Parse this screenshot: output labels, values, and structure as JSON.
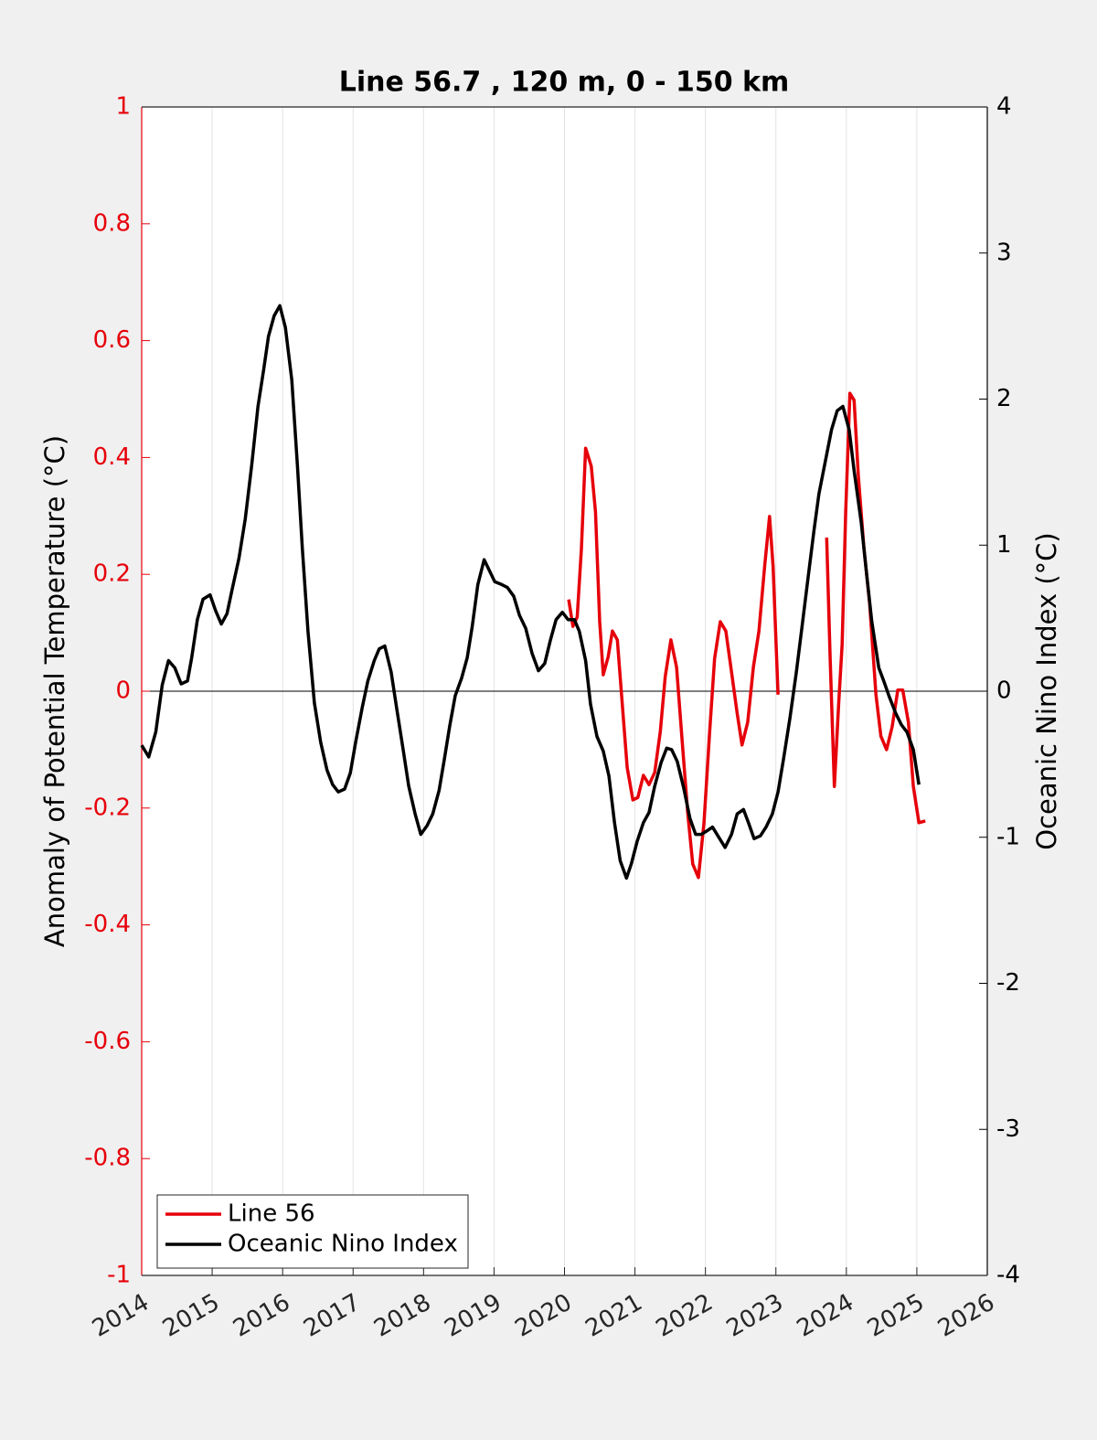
{
  "chart_data": {
    "type": "line",
    "title": "Line 56.7 , 120 m, 0 - 150 km",
    "y_label": "Anomaly of Potential Temperature (°C)",
    "y2_label": "Oceanic Nino Index (°C)",
    "xlim": [
      2014,
      2026
    ],
    "xticks": [
      2014,
      2015,
      2016,
      2017,
      2018,
      2019,
      2020,
      2021,
      2022,
      2023,
      2024,
      2025,
      2026
    ],
    "ylim": [
      -1,
      1
    ],
    "yticks": [
      -1,
      -0.8,
      -0.6,
      -0.4,
      -0.2,
      0,
      0.2,
      0.4,
      0.6,
      0.8,
      1
    ],
    "y2lim": [
      -4,
      4
    ],
    "y2ticks": [
      -4,
      -3,
      -2,
      -1,
      0,
      1,
      2,
      3,
      4
    ],
    "x_grid": true,
    "zero_line": true,
    "legend": "lower left",
    "series": [
      {
        "name": "Line 56",
        "color": "#e6000a",
        "x": [
          2020.06,
          2020.12,
          2020.18,
          2020.24,
          2020.3,
          2020.38,
          2020.44,
          2020.5,
          2020.55,
          2020.62,
          2020.68,
          2020.75,
          2020.81,
          2020.89,
          2020.97,
          2021.04,
          2021.12,
          2021.2,
          2021.28,
          2021.36,
          2021.43,
          2021.51,
          2021.59,
          2021.67,
          2021.75,
          2021.82,
          2021.9,
          2021.98,
          2022.06,
          2022.13,
          2022.21,
          2022.29,
          2022.37,
          2022.45,
          2022.52,
          2022.6,
          2022.68,
          2022.76,
          2022.84,
          2022.91,
          2022.96,
          2023.03,
          null,
          2023.72,
          2023.77,
          2023.83,
          2023.89,
          2023.94,
          2023.99,
          2024.05,
          2024.11,
          2024.17,
          2024.25,
          2024.33,
          2024.42,
          2024.49,
          2024.57,
          2024.65,
          2024.73,
          2024.8,
          2024.88,
          2024.95,
          2025.03,
          2025.12
        ],
        "values": [
          0.157,
          0.111,
          0.127,
          0.244,
          0.416,
          0.385,
          0.307,
          0.119,
          0.028,
          0.059,
          0.103,
          0.088,
          -0.006,
          -0.131,
          -0.186,
          -0.182,
          -0.144,
          -0.16,
          -0.139,
          -0.069,
          0.025,
          0.088,
          0.041,
          -0.085,
          -0.21,
          -0.296,
          -0.319,
          -0.225,
          -0.069,
          0.056,
          0.119,
          0.103,
          0.033,
          -0.038,
          -0.092,
          -0.053,
          0.041,
          0.103,
          0.213,
          0.299,
          0.213,
          -0.006,
          null,
          0.263,
          0.056,
          -0.163,
          -0.022,
          0.08,
          0.307,
          0.51,
          0.498,
          0.369,
          0.244,
          0.15,
          -0.006,
          -0.077,
          -0.1,
          -0.061,
          0.002,
          0.002,
          -0.053,
          -0.163,
          -0.225,
          -0.222
        ]
      },
      {
        "name": "Oceanic Nino Index",
        "color": "#000000",
        "axis": "y2",
        "x": [
          2014.0,
          2014.1,
          2014.2,
          2014.29,
          2014.38,
          2014.47,
          2014.56,
          2014.65,
          2014.71,
          2014.79,
          2014.87,
          2014.97,
          2015.05,
          2015.13,
          2015.21,
          2015.28,
          2015.38,
          2015.47,
          2015.56,
          2015.65,
          2015.73,
          2015.8,
          2015.88,
          2015.96,
          2016.04,
          2016.13,
          2016.21,
          2016.28,
          2016.36,
          2016.45,
          2016.54,
          2016.63,
          2016.71,
          2016.79,
          2016.88,
          2016.96,
          2017.04,
          2017.13,
          2017.21,
          2017.3,
          2017.37,
          2017.45,
          2017.54,
          2017.62,
          2017.71,
          2017.79,
          2017.88,
          2017.96,
          2018.05,
          2018.13,
          2018.22,
          2018.29,
          2018.37,
          2018.45,
          2018.54,
          2018.62,
          2018.69,
          2018.77,
          2018.86,
          2018.94,
          2019.01,
          2019.11,
          2019.19,
          2019.28,
          2019.36,
          2019.45,
          2019.54,
          2019.63,
          2019.72,
          2019.8,
          2019.88,
          2019.97,
          2020.05,
          2020.14,
          2020.21,
          2020.3,
          2020.37,
          2020.46,
          2020.55,
          2020.63,
          2020.71,
          2020.79,
          2020.88,
          2020.95,
          2021.03,
          2021.12,
          2021.2,
          2021.28,
          2021.37,
          2021.45,
          2021.52,
          2021.6,
          2021.69,
          2021.78,
          2021.86,
          2021.94,
          2022.01,
          2022.1,
          2022.19,
          2022.28,
          2022.37,
          2022.45,
          2022.54,
          2022.61,
          2022.69,
          2022.78,
          2022.86,
          2022.95,
          2023.03,
          2023.11,
          2023.2,
          2023.29,
          2023.37,
          2023.46,
          2023.54,
          2023.61,
          2023.7,
          2023.79,
          2023.87,
          2023.95,
          2024.04,
          2024.11,
          2024.21,
          2024.29,
          2024.36,
          2024.46,
          2024.53,
          2024.61,
          2024.7,
          2024.78,
          2024.86,
          2024.95,
          2025.03
        ],
        "values": [
          -0.37,
          -0.45,
          -0.28,
          0.04,
          0.21,
          0.16,
          0.05,
          0.07,
          0.23,
          0.49,
          0.63,
          0.66,
          0.55,
          0.46,
          0.53,
          0.69,
          0.91,
          1.18,
          1.54,
          1.95,
          2.2,
          2.43,
          2.57,
          2.64,
          2.49,
          2.13,
          1.54,
          0.98,
          0.41,
          -0.08,
          -0.35,
          -0.54,
          -0.64,
          -0.69,
          -0.67,
          -0.56,
          -0.34,
          -0.11,
          0.07,
          0.21,
          0.29,
          0.31,
          0.13,
          -0.12,
          -0.4,
          -0.65,
          -0.84,
          -0.98,
          -0.92,
          -0.84,
          -0.68,
          -0.48,
          -0.24,
          -0.03,
          0.09,
          0.23,
          0.44,
          0.73,
          0.9,
          0.82,
          0.75,
          0.73,
          0.71,
          0.65,
          0.52,
          0.43,
          0.26,
          0.14,
          0.19,
          0.35,
          0.49,
          0.54,
          0.49,
          0.49,
          0.41,
          0.21,
          -0.09,
          -0.31,
          -0.41,
          -0.58,
          -0.9,
          -1.16,
          -1.28,
          -1.18,
          -1.03,
          -0.9,
          -0.83,
          -0.65,
          -0.49,
          -0.39,
          -0.4,
          -0.48,
          -0.66,
          -0.87,
          -0.98,
          -0.98,
          -0.96,
          -0.93,
          -1.0,
          -1.07,
          -0.98,
          -0.84,
          -0.81,
          -0.9,
          -1.01,
          -0.99,
          -0.93,
          -0.84,
          -0.69,
          -0.46,
          -0.18,
          0.13,
          0.44,
          0.79,
          1.1,
          1.35,
          1.57,
          1.79,
          1.92,
          1.95,
          1.79,
          1.51,
          1.16,
          0.79,
          0.48,
          0.16,
          0.07,
          -0.04,
          -0.15,
          -0.23,
          -0.28,
          -0.4,
          -0.64
        ]
      }
    ]
  }
}
